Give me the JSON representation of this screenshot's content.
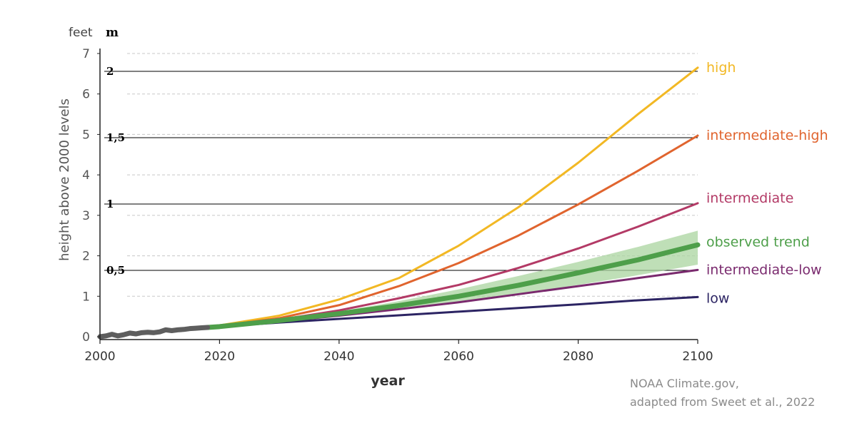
{
  "chart_data": {
    "type": "line",
    "title": "",
    "xlabel": "year",
    "ylabel": "height above 2000 levels",
    "y_unit_label": "feet",
    "secondary_unit_label": "m",
    "xlim": [
      2000,
      2100
    ],
    "ylim": [
      0,
      7
    ],
    "x_ticks": [
      2000,
      2020,
      2040,
      2060,
      2080,
      2100
    ],
    "x_tick_labels": [
      "2000",
      "2020",
      "2040",
      "2060",
      "2080",
      "2100"
    ],
    "y_ticks": [
      0,
      1,
      2,
      3,
      4,
      5,
      6,
      7
    ],
    "y_tick_labels": [
      "0",
      "1",
      "2",
      "3",
      "4",
      "5",
      "6",
      "7"
    ],
    "meter_lines": [
      {
        "label": "0,5",
        "feet": 1.64
      },
      {
        "label": "1",
        "feet": 3.28
      },
      {
        "label": "1,5",
        "feet": 4.92
      },
      {
        "label": "2",
        "feet": 6.56
      }
    ],
    "historical": {
      "x": [
        2000,
        2001,
        2002,
        2003,
        2004,
        2005,
        2006,
        2007,
        2008,
        2009,
        2010,
        2011,
        2012,
        2013,
        2014,
        2015,
        2016,
        2017,
        2018
      ],
      "values": [
        0.0,
        0.02,
        0.06,
        0.02,
        0.05,
        0.09,
        0.07,
        0.1,
        0.11,
        0.1,
        0.12,
        0.17,
        0.15,
        0.17,
        0.18,
        0.2,
        0.21,
        0.22,
        0.23
      ]
    },
    "series": [
      {
        "name": "high",
        "color": "#f2b824",
        "x": [
          2018,
          2020,
          2030,
          2040,
          2050,
          2060,
          2070,
          2080,
          2090,
          2100
        ],
        "values": [
          0.23,
          0.28,
          0.52,
          0.92,
          1.45,
          2.25,
          3.2,
          4.3,
          5.5,
          6.65
        ]
      },
      {
        "name": "intermediate-high",
        "color": "#e0642e",
        "x": [
          2018,
          2020,
          2030,
          2040,
          2050,
          2060,
          2070,
          2080,
          2090,
          2100
        ],
        "values": [
          0.23,
          0.27,
          0.46,
          0.78,
          1.25,
          1.82,
          2.5,
          3.27,
          4.1,
          4.97
        ]
      },
      {
        "name": "intermediate",
        "color": "#b33a66",
        "x": [
          2018,
          2020,
          2030,
          2040,
          2050,
          2060,
          2070,
          2080,
          2090,
          2100
        ],
        "values": [
          0.23,
          0.26,
          0.42,
          0.65,
          0.95,
          1.28,
          1.7,
          2.18,
          2.72,
          3.3
        ]
      },
      {
        "name": "intermediate-low",
        "color": "#7a2a6e",
        "x": [
          2018,
          2020,
          2030,
          2040,
          2050,
          2060,
          2070,
          2080,
          2090,
          2100
        ],
        "values": [
          0.23,
          0.25,
          0.37,
          0.52,
          0.68,
          0.85,
          1.05,
          1.25,
          1.45,
          1.65
        ]
      },
      {
        "name": "low",
        "color": "#2c2463",
        "x": [
          2018,
          2020,
          2030,
          2040,
          2050,
          2060,
          2070,
          2080,
          2090,
          2100
        ],
        "values": [
          0.23,
          0.25,
          0.35,
          0.44,
          0.53,
          0.62,
          0.71,
          0.8,
          0.9,
          0.98
        ]
      },
      {
        "name": "observed trend",
        "color": "#4e9f4a",
        "x": [
          2018,
          2020,
          2030,
          2040,
          2050,
          2060,
          2070,
          2080,
          2090,
          2100
        ],
        "values": [
          0.23,
          0.25,
          0.4,
          0.57,
          0.77,
          1.0,
          1.27,
          1.58,
          1.9,
          2.27
        ],
        "band_low": [
          0.23,
          0.25,
          0.38,
          0.52,
          0.67,
          0.85,
          1.05,
          1.28,
          1.52,
          1.78
        ],
        "band_high": [
          0.23,
          0.25,
          0.42,
          0.62,
          0.88,
          1.17,
          1.5,
          1.85,
          2.22,
          2.62
        ]
      }
    ],
    "label_order": [
      "high",
      "intermediate-high",
      "intermediate",
      "observed trend",
      "intermediate-low",
      "low"
    ],
    "credit": [
      "NOAA Climate.gov,",
      "adapted from Sweet et al., 2022"
    ]
  },
  "colors": {
    "historical": "#5e5e5e",
    "band": "#a9d49f",
    "grid": "#c8c8c8",
    "axis": "#222222",
    "tick_text": "#555555"
  }
}
